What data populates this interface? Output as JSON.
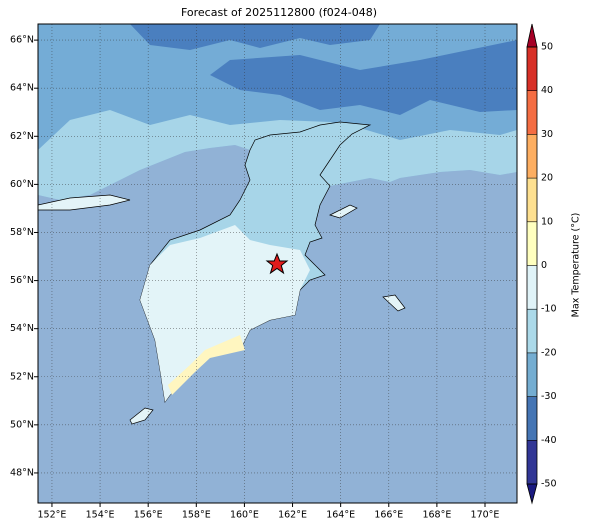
{
  "chart_data": {
    "type": "map",
    "title": "Forecast of 2025112800 (f024-048)",
    "xlim": [
      151.42,
      171.33
    ],
    "ylim": [
      46.75,
      66.67
    ],
    "xticks": [
      {
        "value": 152,
        "label": "152°E"
      },
      {
        "value": 154,
        "label": "154°E"
      },
      {
        "value": 156,
        "label": "156°E"
      },
      {
        "value": 158,
        "label": "158°E"
      },
      {
        "value": 160,
        "label": "160°E"
      },
      {
        "value": 162,
        "label": "162°E"
      },
      {
        "value": 164,
        "label": "164°E"
      },
      {
        "value": 166,
        "label": "166°E"
      },
      {
        "value": 168,
        "label": "168°E"
      },
      {
        "value": 170,
        "label": "170°E"
      }
    ],
    "yticks": [
      {
        "value": 48,
        "label": "48°N"
      },
      {
        "value": 50,
        "label": "50°N"
      },
      {
        "value": 52,
        "label": "52°N"
      },
      {
        "value": 54,
        "label": "54°N"
      },
      {
        "value": 56,
        "label": "56°N"
      },
      {
        "value": 58,
        "label": "58°N"
      },
      {
        "value": 60,
        "label": "60°N"
      },
      {
        "value": 62,
        "label": "62°N"
      },
      {
        "value": 64,
        "label": "64°N"
      },
      {
        "value": 66,
        "label": "66°N"
      }
    ],
    "grid": true,
    "colorbar": {
      "label": "Max Temperature (°C)",
      "clim": [
        -50,
        50
      ],
      "ticks": [
        -50,
        -40,
        -30,
        -20,
        -10,
        0,
        10,
        20,
        30,
        40,
        50
      ],
      "colors": [
        "#1a1a80",
        "#313695",
        "#4575b4",
        "#74add1",
        "#abd9e9",
        "#e0f3f8",
        "#ffffbf",
        "#fee090",
        "#fdae61",
        "#f46d43",
        "#d73027",
        "#a50026"
      ]
    }
  }
}
